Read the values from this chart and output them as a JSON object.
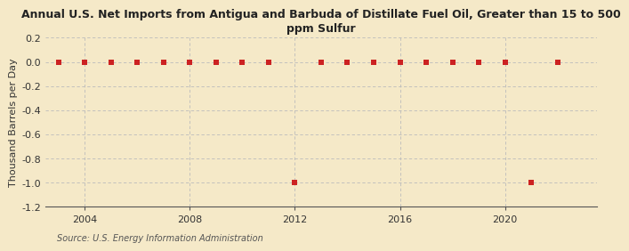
{
  "title": "Annual U.S. Net Imports from Antigua and Barbuda of Distillate Fuel Oil, Greater than 15 to 500\nppm Sulfur",
  "ylabel": "Thousand Barrels per Day",
  "source": "Source: U.S. Energy Information Administration",
  "background_color": "#f5e9c8",
  "plot_bg_color": "#f5e9c8",
  "years": [
    2003,
    2004,
    2005,
    2006,
    2007,
    2008,
    2009,
    2010,
    2011,
    2012,
    2013,
    2014,
    2015,
    2016,
    2017,
    2018,
    2019,
    2020,
    2021,
    2022
  ],
  "values": [
    0,
    0,
    0,
    0,
    0,
    0,
    0,
    0,
    0,
    -1,
    0,
    0,
    0,
    0,
    0,
    0,
    0,
    0,
    -1,
    0
  ],
  "ylim": [
    -1.2,
    0.2
  ],
  "yticks": [
    0.2,
    0.0,
    -0.2,
    -0.4,
    -0.6,
    -0.8,
    -1.0,
    -1.2
  ],
  "xticks": [
    2004,
    2008,
    2012,
    2016,
    2020
  ],
  "marker_color": "#cc2222",
  "marker_size": 4,
  "grid_color": "#bbbbbb",
  "vline_color": "#bbbbbb",
  "title_fontsize": 9,
  "axis_fontsize": 8,
  "ylabel_fontsize": 8,
  "source_fontsize": 7,
  "xlim": [
    2002.5,
    2023.5
  ]
}
